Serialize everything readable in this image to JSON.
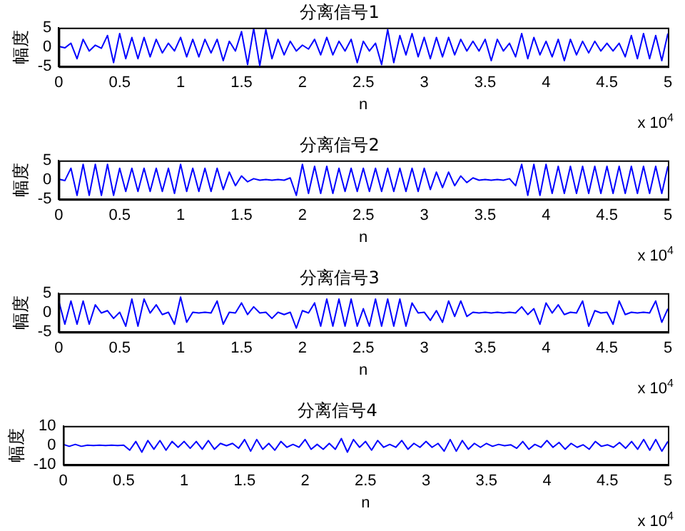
{
  "chart_data": [
    {
      "type": "line",
      "title": "分离信号1",
      "xlabel": "n",
      "ylabel": "幅度",
      "annotations": [
        "x 10$^{4}$"
      ],
      "grid": false,
      "x": [
        0,
        0.05,
        0.1,
        0.15,
        0.2,
        0.25,
        0.3,
        0.35,
        0.4,
        0.45,
        0.5,
        0.55,
        0.6,
        0.65,
        0.7,
        0.75,
        0.8,
        0.85,
        0.9,
        0.95,
        1,
        1.05,
        1.1,
        1.15,
        1.2,
        1.25,
        1.3,
        1.35,
        1.4,
        1.45,
        1.5,
        1.55,
        1.6,
        1.65,
        1.7,
        1.75,
        1.8,
        1.85,
        1.9,
        1.95,
        2,
        2.05,
        2.1,
        2.15,
        2.2,
        2.25,
        2.3,
        2.35,
        2.4,
        2.45,
        2.5,
        2.55,
        2.6,
        2.65,
        2.7,
        2.75,
        2.8,
        2.85,
        2.9,
        2.95,
        3,
        3.05,
        3.1,
        3.15,
        3.2,
        3.25,
        3.3,
        3.35,
        3.4,
        3.45,
        3.5,
        3.55,
        3.6,
        3.65,
        3.7,
        3.75,
        3.8,
        3.85,
        3.9,
        3.95,
        4,
        4.05,
        4.1,
        4.15,
        4.2,
        4.25,
        4.3,
        4.35,
        4.4,
        4.45,
        4.5,
        4.55,
        4.6,
        4.65,
        4.7,
        4.75,
        4.8,
        4.85,
        4.9,
        4.95,
        5
      ],
      "xlim": [
        0,
        5
      ],
      "xticks": [
        0,
        0.5,
        1,
        1.5,
        2,
        2.5,
        3,
        3.5,
        4,
        4.5,
        5
      ],
      "ylim": [
        -5,
        5
      ],
      "yticks": [
        -5,
        0,
        5
      ],
      "series": [
        {
          "color": "#0000ff",
          "values": [
            0.2,
            -0.2,
            1,
            -3,
            2,
            -1,
            0.5,
            -0.3,
            3,
            -4,
            3.5,
            -3,
            2.5,
            -3,
            2.5,
            -2.5,
            2,
            -1.5,
            1,
            -1,
            2.5,
            -2.5,
            2,
            -2.5,
            2,
            -1.5,
            2,
            -3.5,
            1.5,
            -1,
            4,
            -4.5,
            4.8,
            -4.8,
            4.5,
            -3,
            2,
            -2,
            1.5,
            -1,
            0.5,
            -0.5,
            2,
            -2,
            2.5,
            -2,
            1.5,
            -1,
            2,
            -4,
            1.5,
            -1,
            1,
            -4.5,
            4.5,
            -4,
            3,
            -2,
            3.5,
            -2.5,
            2.5,
            -3,
            2.5,
            -2.5,
            2.5,
            -2,
            2,
            -1,
            1.5,
            -1,
            2,
            -3.5,
            2,
            -1,
            1,
            -2.5,
            3.5,
            -3,
            2.5,
            -2,
            1.5,
            -2.5,
            2,
            -3.5,
            2,
            -2,
            1.5,
            -1.5,
            1.5,
            -1,
            1,
            -1,
            1,
            -2.5,
            3,
            -3,
            3.5,
            -3,
            3,
            -3.5,
            3.5
          ]
        }
      ]
    },
    {
      "type": "line",
      "title": "分离信号2",
      "xlabel": "n",
      "ylabel": "幅度",
      "annotations": [
        "x 10$^{4}$"
      ],
      "grid": false,
      "x": [
        0,
        0.05,
        0.1,
        0.15,
        0.2,
        0.25,
        0.3,
        0.35,
        0.4,
        0.45,
        0.5,
        0.55,
        0.6,
        0.65,
        0.7,
        0.75,
        0.8,
        0.85,
        0.9,
        0.95,
        1,
        1.05,
        1.1,
        1.15,
        1.2,
        1.25,
        1.3,
        1.35,
        1.4,
        1.45,
        1.5,
        1.55,
        1.6,
        1.65,
        1.7,
        1.75,
        1.8,
        1.85,
        1.9,
        1.95,
        2,
        2.05,
        2.1,
        2.15,
        2.2,
        2.25,
        2.3,
        2.35,
        2.4,
        2.45,
        2.5,
        2.55,
        2.6,
        2.65,
        2.7,
        2.75,
        2.8,
        2.85,
        2.9,
        2.95,
        3,
        3.05,
        3.1,
        3.15,
        3.2,
        3.25,
        3.3,
        3.35,
        3.4,
        3.45,
        3.5,
        3.55,
        3.6,
        3.65,
        3.7,
        3.75,
        3.8,
        3.85,
        3.9,
        3.95,
        4,
        4.05,
        4.1,
        4.15,
        4.2,
        4.25,
        4.3,
        4.35,
        4.4,
        4.45,
        4.5,
        4.55,
        4.6,
        4.65,
        4.7,
        4.75,
        4.8,
        4.85,
        4.9,
        4.95,
        5
      ],
      "xlim": [
        0,
        5
      ],
      "xticks": [
        0,
        0.5,
        1,
        1.5,
        2,
        2.5,
        3,
        3.5,
        4,
        4.5,
        5
      ],
      "ylim": [
        -5,
        5
      ],
      "yticks": [
        -5,
        0,
        5
      ],
      "series": [
        {
          "color": "#0000ff",
          "values": [
            0.2,
            -0.2,
            3,
            -4,
            4,
            -4,
            4,
            -4,
            4,
            -4,
            3,
            -3,
            3,
            -3,
            3,
            -3,
            3,
            -3,
            3,
            -3.5,
            4,
            -3,
            3,
            -3,
            3,
            -3,
            3,
            -2.5,
            2,
            -1.5,
            1,
            -0.5,
            0.3,
            -0.1,
            0.1,
            -0.1,
            0.1,
            -0.1,
            0.5,
            -4,
            4,
            -3.5,
            3.5,
            -3.5,
            3.5,
            -3.5,
            3,
            -3,
            3,
            -3,
            3,
            -3,
            3,
            -3,
            3,
            -3,
            3,
            -3,
            3,
            -3,
            3,
            -2.5,
            2,
            -2,
            2,
            -1.5,
            1,
            -0.7,
            0.5,
            -0.1,
            0.1,
            -0.1,
            0.1,
            -0.1,
            0.3,
            -1.5,
            4,
            -4,
            4,
            -4,
            4,
            -3.5,
            3.5,
            -3.5,
            3.5,
            -3.5,
            3.5,
            -3.5,
            3.5,
            -3.5,
            3.5,
            -3.5,
            3.5,
            -3.5,
            3.5,
            -3.5,
            3.5,
            -3.5,
            3.5,
            -3.5,
            3.5
          ]
        }
      ]
    },
    {
      "type": "line",
      "title": "分离信号3",
      "xlabel": "n",
      "ylabel": "幅度",
      "annotations": [
        "x 10$^{4}$"
      ],
      "grid": false,
      "x": [
        0,
        0.05,
        0.1,
        0.15,
        0.2,
        0.25,
        0.3,
        0.35,
        0.4,
        0.45,
        0.5,
        0.55,
        0.6,
        0.65,
        0.7,
        0.75,
        0.8,
        0.85,
        0.9,
        0.95,
        1,
        1.05,
        1.1,
        1.15,
        1.2,
        1.25,
        1.3,
        1.35,
        1.4,
        1.45,
        1.5,
        1.55,
        1.6,
        1.65,
        1.7,
        1.75,
        1.8,
        1.85,
        1.9,
        1.95,
        2,
        2.05,
        2.1,
        2.15,
        2.2,
        2.25,
        2.3,
        2.35,
        2.4,
        2.45,
        2.5,
        2.55,
        2.6,
        2.65,
        2.7,
        2.75,
        2.8,
        2.85,
        2.9,
        2.95,
        3,
        3.05,
        3.1,
        3.15,
        3.2,
        3.25,
        3.3,
        3.35,
        3.4,
        3.45,
        3.5,
        3.55,
        3.6,
        3.65,
        3.7,
        3.75,
        3.8,
        3.85,
        3.9,
        3.95,
        4,
        4.05,
        4.1,
        4.15,
        4.2,
        4.25,
        4.3,
        4.35,
        4.4,
        4.45,
        4.5,
        4.55,
        4.6,
        4.65,
        4.7,
        4.75,
        4.8,
        4.85,
        4.9,
        4.95,
        5
      ],
      "xlim": [
        0,
        5
      ],
      "xticks": [
        0,
        0.5,
        1,
        1.5,
        2,
        2.5,
        3,
        3.5,
        4,
        4.5,
        5
      ],
      "ylim": [
        -5,
        5
      ],
      "yticks": [
        -5,
        0,
        5
      ],
      "series": [
        {
          "color": "#0000ff",
          "values": [
            3,
            -3,
            3,
            -3,
            3,
            -3,
            2,
            -0.1,
            0.5,
            -1.5,
            0.1,
            -3.5,
            3.5,
            -3.5,
            3.5,
            -0.1,
            2,
            -0.5,
            0.1,
            -3,
            4,
            -2.5,
            0.1,
            -0.1,
            0.1,
            -0.1,
            3,
            -3,
            0.1,
            -0.1,
            2.5,
            -0.5,
            1.5,
            -0.1,
            0.1,
            -1.5,
            0.1,
            -0.5,
            0.1,
            -4,
            0.5,
            -0.1,
            2.5,
            -3.5,
            3.5,
            -3.5,
            3.5,
            -3.5,
            3.5,
            -3.5,
            1,
            -3.5,
            3.5,
            -3.5,
            3.5,
            -3.5,
            3.5,
            -3.5,
            2.5,
            -0.1,
            0.1,
            -2,
            0.5,
            -2.5,
            3,
            -1,
            3,
            -1,
            0.1,
            -0.1,
            0.1,
            -0.1,
            0.1,
            -0.1,
            0.1,
            -0.1,
            1.5,
            -0.5,
            1,
            -3,
            2.5,
            -0.1,
            2,
            -0.5,
            0.1,
            -0.1,
            3,
            -3.5,
            0.5,
            -0.1,
            0.1,
            -3,
            3,
            -0.5,
            0.1,
            -0.1,
            0.1,
            -0.1,
            3,
            -2.5,
            1
          ]
        }
      ]
    },
    {
      "type": "line",
      "title": "分离信号4",
      "xlabel": "n",
      "ylabel": "幅度",
      "annotations": [
        "x 10$^{4}$"
      ],
      "grid": false,
      "x": [
        0,
        0.05,
        0.1,
        0.15,
        0.2,
        0.25,
        0.3,
        0.35,
        0.4,
        0.45,
        0.5,
        0.55,
        0.6,
        0.65,
        0.7,
        0.75,
        0.8,
        0.85,
        0.9,
        0.95,
        1,
        1.05,
        1.1,
        1.15,
        1.2,
        1.25,
        1.3,
        1.35,
        1.4,
        1.45,
        1.5,
        1.55,
        1.6,
        1.65,
        1.7,
        1.75,
        1.8,
        1.85,
        1.9,
        1.95,
        2,
        2.05,
        2.1,
        2.15,
        2.2,
        2.25,
        2.3,
        2.35,
        2.4,
        2.45,
        2.5,
        2.55,
        2.6,
        2.65,
        2.7,
        2.75,
        2.8,
        2.85,
        2.9,
        2.95,
        3,
        3.05,
        3.1,
        3.15,
        3.2,
        3.25,
        3.3,
        3.35,
        3.4,
        3.45,
        3.5,
        3.55,
        3.6,
        3.65,
        3.7,
        3.75,
        3.8,
        3.85,
        3.9,
        3.95,
        4,
        4.05,
        4.1,
        4.15,
        4.2,
        4.25,
        4.3,
        4.35,
        4.4,
        4.45,
        4.5,
        4.55,
        4.6,
        4.65,
        4.7,
        4.75,
        4.8,
        4.85,
        4.9,
        4.95,
        5
      ],
      "xlim": [
        0,
        5
      ],
      "xticks": [
        0,
        0.5,
        1,
        1.5,
        2,
        2.5,
        3,
        3.5,
        4,
        4.5,
        5
      ],
      "ylim": [
        -10,
        10
      ],
      "yticks": [
        -10,
        0,
        10
      ],
      "series": [
        {
          "color": "#0000ff",
          "values": [
            0.5,
            -0.5,
            0.5,
            -0.5,
            0.1,
            -0.1,
            0.1,
            -0.1,
            0.1,
            -0.1,
            0.1,
            -2.5,
            2,
            -3.5,
            2.5,
            -2,
            2.5,
            -2.5,
            2,
            -1,
            2,
            -1.5,
            2,
            -2,
            2.5,
            -2,
            1,
            -0.2,
            1,
            -1.5,
            3,
            -3,
            3,
            -2,
            1,
            -2.5,
            2,
            -1,
            0.5,
            -1,
            3,
            -2,
            0.5,
            -2,
            1,
            -2,
            3.5,
            -3.5,
            3,
            -1,
            2,
            -2.5,
            2.5,
            -1,
            0.5,
            -1,
            2.5,
            -2,
            1,
            -1,
            2,
            -1,
            1,
            -3,
            3,
            -3,
            2.5,
            -2,
            1,
            -1,
            1,
            -0.5,
            0.5,
            -0.2,
            0.3,
            -1.5,
            2,
            -2,
            0.5,
            -1,
            2.5,
            -1,
            1.5,
            -2,
            1,
            -1,
            0.3,
            -2,
            2,
            -0.5,
            0.3,
            -1,
            1.5,
            -1.5,
            2,
            -2,
            3,
            -2.5,
            3,
            -3,
            2
          ]
        }
      ]
    }
  ]
}
